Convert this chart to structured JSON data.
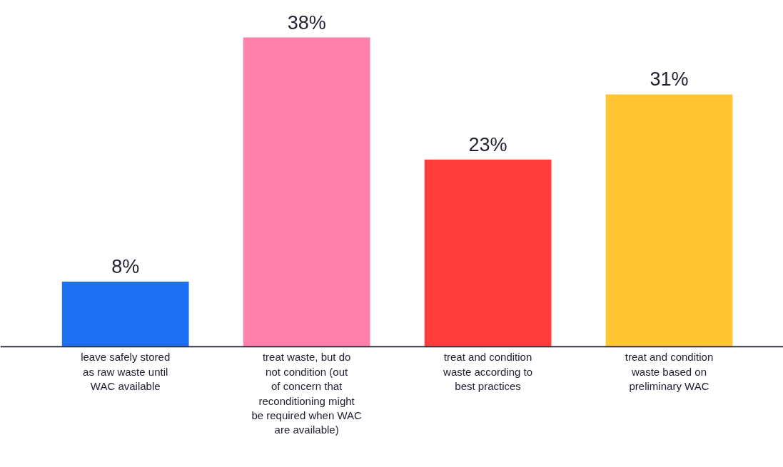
{
  "chart_data": {
    "type": "bar",
    "categories": [
      "leave safely stored as raw waste until WAC available",
      "treat waste, but do not condition (out of concern that reconditioning might be required when WAC are available)",
      "treat and condition waste according to best practices",
      "treat and condition waste based on preliminary WAC"
    ],
    "values": [
      8,
      38,
      23,
      31
    ],
    "colors": [
      "#1f6ff5",
      "#ff80aa",
      "#ff3d3d",
      "#ffc533"
    ],
    "value_labels": [
      "8%",
      "38%",
      "23%",
      "31%"
    ],
    "grid": false
  }
}
